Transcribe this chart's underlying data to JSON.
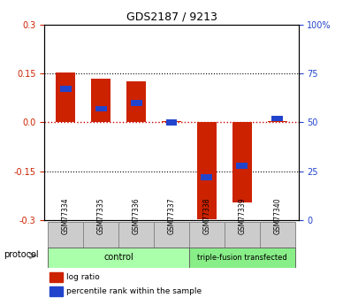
{
  "title": "GDS2187 / 9213",
  "samples": [
    "GSM77334",
    "GSM77335",
    "GSM77336",
    "GSM77337",
    "GSM77338",
    "GSM77339",
    "GSM77340"
  ],
  "log_ratio": [
    0.153,
    0.135,
    0.125,
    0.005,
    -0.295,
    -0.245,
    0.005
  ],
  "percentile_rank": [
    67,
    57,
    60,
    50,
    22,
    28,
    52
  ],
  "groups": [
    {
      "label": "control",
      "indices": [
        0,
        1,
        2,
        3
      ],
      "color": "#aaffaa"
    },
    {
      "label": "triple-fusion transfected",
      "indices": [
        4,
        5,
        6
      ],
      "color": "#88ee88"
    }
  ],
  "ylim_left": [
    -0.3,
    0.3
  ],
  "ylim_right": [
    0,
    100
  ],
  "yticks_left": [
    -0.3,
    -0.15,
    0.0,
    0.15,
    0.3
  ],
  "yticks_right": [
    0,
    25,
    50,
    75,
    100
  ],
  "ytick_right_labels": [
    "0",
    "25",
    "50",
    "75",
    "100%"
  ],
  "bar_color_red": "#cc2200",
  "bar_color_blue": "#2244cc",
  "hline_color": "#cc0000",
  "dotted_color": "#000000",
  "bar_width": 0.35,
  "protocol_label": "protocol",
  "legend_red": "log ratio",
  "legend_blue": "percentile rank within the sample"
}
